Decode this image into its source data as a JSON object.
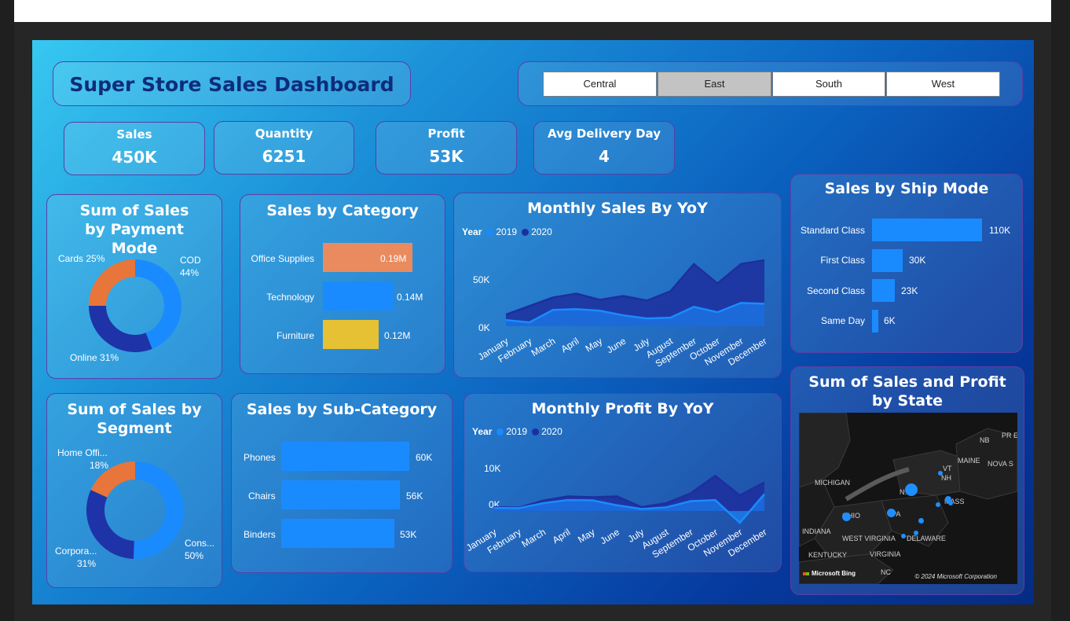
{
  "header": {
    "title": "Super Store Sales Dashboard",
    "regions": [
      "Central",
      "East",
      "South",
      "West"
    ],
    "selected_region": "East"
  },
  "kpis": [
    {
      "label": "Sales",
      "value": "450K"
    },
    {
      "label": "Quantity",
      "value": "6251"
    },
    {
      "label": "Profit",
      "value": "53K"
    },
    {
      "label": "Avg Delivery Day",
      "value": "4"
    }
  ],
  "colors": {
    "blue": "#1a8bff",
    "dark_blue": "#1f33a8",
    "orange": "#e8753a",
    "salmon": "#e98b5e",
    "yellow": "#e5c133",
    "line_2020": "#1d2f9e"
  },
  "payment_mode": {
    "title": "Sum of Sales by Payment Mode",
    "labels": {
      "cod": "COD",
      "cod_pct": "44%",
      "cards": "Cards 25%",
      "online": "Online 31%"
    }
  },
  "segment": {
    "title": "Sum of Sales by Segment",
    "labels": {
      "home": "Home Offi...",
      "home_pct": "18%",
      "corp": "Corpora...",
      "corp_pct": "31%",
      "cons": "Cons...",
      "cons_pct": "50%"
    }
  },
  "category": {
    "title": "Sales by Category",
    "items": [
      {
        "label": "Office Supplies",
        "value_label": "0.19M"
      },
      {
        "label": "Technology",
        "value_label": "0.14M"
      },
      {
        "label": "Furniture",
        "value_label": "0.12M"
      }
    ]
  },
  "subcategory": {
    "title": "Sales by Sub-Category",
    "items": [
      {
        "label": "Phones",
        "value_label": "60K"
      },
      {
        "label": "Chairs",
        "value_label": "56K"
      },
      {
        "label": "Binders",
        "value_label": "53K"
      }
    ]
  },
  "monthly_sales": {
    "title": "Monthly Sales By YoY",
    "legend_title": "Year",
    "series_names": [
      "2019",
      "2020"
    ],
    "ticks": [
      "50K",
      "0K"
    ]
  },
  "monthly_profit": {
    "title": "Monthly Profit By YoY",
    "legend_title": "Year",
    "series_names": [
      "2019",
      "2020"
    ],
    "ticks": [
      "10K",
      "0K"
    ]
  },
  "ship_mode": {
    "title": "Sales by Ship Mode",
    "items": [
      {
        "label": "Standard Class",
        "value_label": "110K"
      },
      {
        "label": "First Class",
        "value_label": "30K"
      },
      {
        "label": "Second Class",
        "value_label": "23K"
      },
      {
        "label": "Same Day",
        "value_label": "6K"
      }
    ]
  },
  "map": {
    "title": "Sum of Sales and Profit by State",
    "logo": "Microsoft Bing",
    "copyright": "© 2024 Microsoft Corporation",
    "place_labels": [
      "MICHIGAN",
      "INDIANA",
      "KENTUCKY",
      "WEST VIRGINIA",
      "VIRGINIA",
      "NC",
      "MAINE",
      "NB",
      "NOVA S",
      "PR ED",
      "VT",
      "NH",
      "N.Y.",
      "DELAWARE",
      "OHIO",
      "PA",
      "MASS"
    ]
  },
  "chart_data": [
    {
      "type": "pie",
      "title": "Sum of Sales by Payment Mode",
      "categories": [
        "COD",
        "Online",
        "Cards"
      ],
      "values": [
        44,
        31,
        25
      ],
      "colors": [
        "#1a8bff",
        "#1f33a8",
        "#e8753a"
      ]
    },
    {
      "type": "pie",
      "title": "Sum of Sales by Segment",
      "categories": [
        "Cons...",
        "Corpora...",
        "Home Offi..."
      ],
      "values": [
        50,
        31,
        18
      ],
      "colors": [
        "#1a8bff",
        "#1f33a8",
        "#e8753a"
      ]
    },
    {
      "type": "bar",
      "title": "Sales by Category",
      "categories": [
        "Office Supplies",
        "Technology",
        "Furniture"
      ],
      "values": [
        0.19,
        0.14,
        0.12
      ],
      "colors": [
        "#e98b5e",
        "#1a8bff",
        "#e5c133"
      ]
    },
    {
      "type": "area",
      "title": "Monthly Sales By YoY",
      "categories": [
        "January",
        "February",
        "March",
        "April",
        "May",
        "June",
        "July",
        "August",
        "September",
        "October",
        "November",
        "December"
      ],
      "series": [
        {
          "name": "2019",
          "values": [
            8,
            5,
            21,
            22,
            20,
            14,
            10,
            11,
            25,
            18,
            30,
            29
          ]
        },
        {
          "name": "2020",
          "values": [
            15,
            26,
            37,
            42,
            34,
            39,
            33,
            45,
            80,
            55,
            80,
            85
          ]
        }
      ],
      "ylim": [
        -5,
        90
      ]
    },
    {
      "type": "area",
      "title": "Monthly Profit By YoY",
      "categories": [
        "January",
        "February",
        "March",
        "April",
        "May",
        "June",
        "July",
        "August",
        "September",
        "October",
        "November",
        "December"
      ],
      "series": [
        {
          "name": "2019",
          "values": [
            1.2,
            1.1,
            3.0,
            4.2,
            4.1,
            2.2,
            0.8,
            1.4,
            3.8,
            4.2,
            -4.5,
            6.5
          ]
        },
        {
          "name": "2020",
          "values": [
            1.5,
            1.3,
            4.0,
            5.6,
            5.3,
            5.6,
            1.5,
            3.0,
            6.8,
            13.5,
            6.0,
            11.0
          ]
        }
      ],
      "ylim": [
        -6,
        16
      ]
    },
    {
      "type": "bar",
      "title": "Sales by Ship Mode",
      "categories": [
        "Standard Class",
        "First Class",
        "Second Class",
        "Same Day"
      ],
      "values": [
        110,
        30,
        23,
        6
      ]
    },
    {
      "type": "bar",
      "title": "Sales by Sub-Category",
      "categories": [
        "Phones",
        "Chairs",
        "Binders"
      ],
      "values": [
        60,
        56,
        53
      ]
    }
  ]
}
